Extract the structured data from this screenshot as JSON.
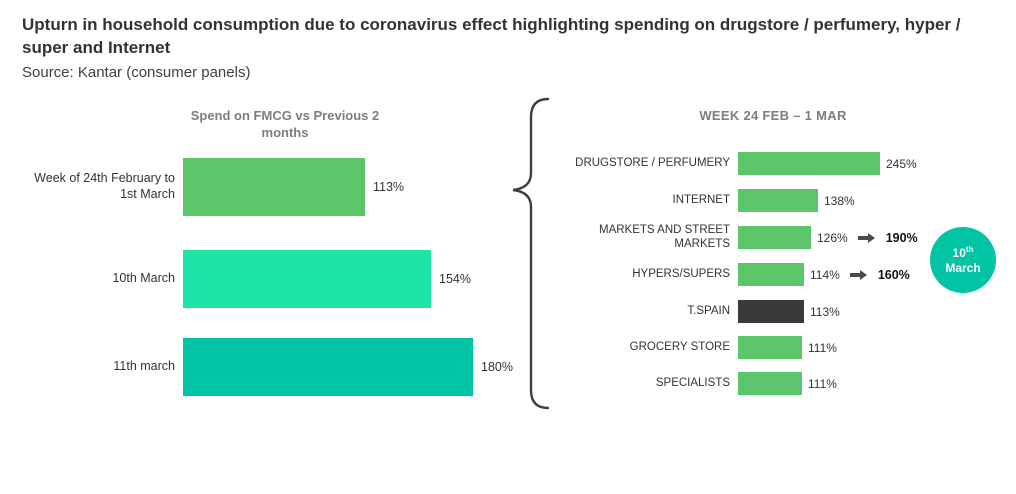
{
  "header": {
    "title": "Upturn in household consumption due to coronavirus effect highlighting spending on drugstore / perfumery, hyper / super and Internet",
    "source": "Source: Kantar (consumer panels)"
  },
  "chart_data": [
    {
      "type": "bar",
      "orientation": "horizontal",
      "title": "Spend on FMCG vs Previous 2 months",
      "categories": [
        "Week of 24th February to 1st March",
        "10th March",
        "11th march"
      ],
      "values": [
        113,
        154,
        180
      ],
      "value_labels": [
        "113%",
        "154%",
        "180%"
      ],
      "bar_colors": [
        "#5ec66a",
        "#1ee3a6",
        "#00c4a3"
      ],
      "xlim": [
        0,
        200
      ],
      "grid": false,
      "legend": "none"
    },
    {
      "type": "bar",
      "orientation": "horizontal",
      "title": "WEEK 24 FEB – 1 MAR",
      "categories": [
        "DRUGSTORE / PERFUMERY",
        "INTERNET",
        "MARKETS AND STREET MARKETS",
        "HYPERS/SUPERS",
        "T.SPAIN",
        "GROCERY STORE",
        "SPECIALISTS"
      ],
      "values": [
        245,
        138,
        126,
        114,
        113,
        111,
        111
      ],
      "value_labels": [
        "245%",
        "138%",
        "126%",
        "114%",
        "113%",
        "111%",
        "111%"
      ],
      "bar_colors": [
        "#5ec66a",
        "#5ec66a",
        "#5ec66a",
        "#5ec66a",
        "#3a3a3a",
        "#5ec66a",
        "#5ec66a"
      ],
      "annotations": [
        {
          "category": "MARKETS AND STREET MARKETS",
          "arrow": "right-arrow",
          "value": "190%"
        },
        {
          "category": "HYPERS/SUPERS",
          "arrow": "right-arrow",
          "value": "160%"
        }
      ],
      "xlim": [
        0,
        260
      ],
      "grid": false,
      "legend": "none"
    }
  ],
  "annotation_values": {
    "markets": "190%",
    "hypers": "160%"
  },
  "badge": {
    "number": "10",
    "ordinal": "th",
    "word": "March",
    "color": "#00c4a3"
  },
  "brace": {
    "color": "#3f3f3f"
  }
}
